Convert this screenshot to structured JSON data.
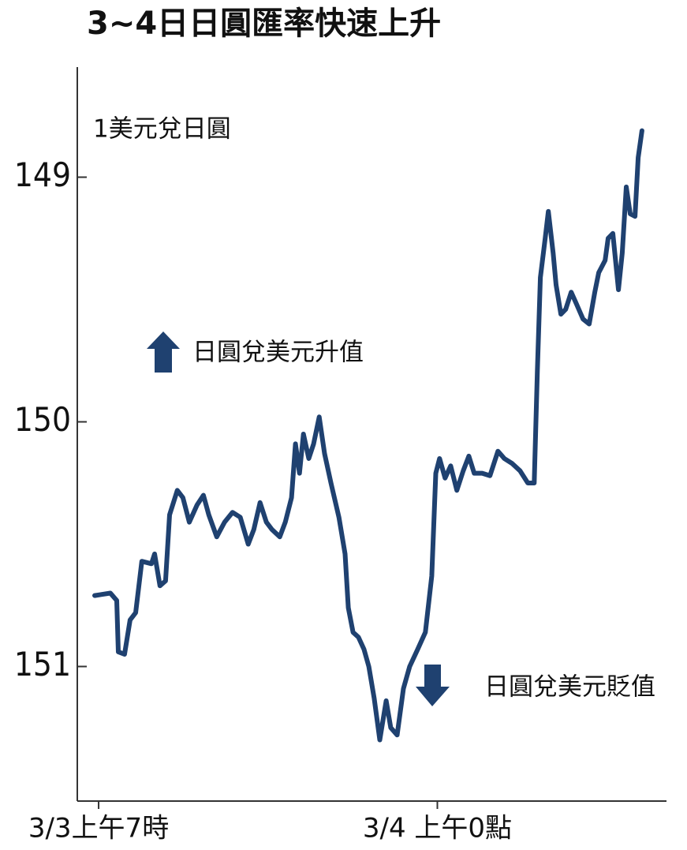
{
  "chart_data": {
    "type": "line",
    "title": "3~4日日圓匯率快速上升",
    "y_label": "1美元兌日圓",
    "annotations": [
      "日圓兌美元升值",
      "日圓兌美元貶值"
    ],
    "x": [
      -0.2,
      0.59,
      0.91,
      0.99,
      1.3,
      1.58,
      1.86,
      2.17,
      2.65,
      2.81,
      3.08,
      3.36,
      3.56,
      3.95,
      4.23,
      4.55,
      4.94,
      5.26,
      5.53,
      5.93,
      6.32,
      6.72,
      7.11,
      7.51,
      7.79,
      8.1,
      8.42,
      8.7,
      9.09,
      9.37,
      9.68,
      9.88,
      10.08,
      10.28,
      10.55,
      10.79,
      11.07,
      11.34,
      11.66,
      12.06,
      12.37,
      12.53,
      12.77,
      13.04,
      13.32,
      13.56,
      13.83,
      14.11,
      14.43,
      14.66,
      14.98,
      15.3,
      15.61,
      16.01,
      16.4,
      16.72,
      16.92,
      17.11,
      17.39,
      17.67,
      17.98,
      18.3,
      18.58,
      18.85,
      19.25,
      19.64,
      20.04,
      20.36,
      20.75,
      21.15,
      21.54,
      21.86,
      22.02,
      22.17,
      22.41,
      22.57,
      22.81,
      22.96,
      23.2,
      23.44,
      23.72,
      23.99,
      24.31,
      24.62,
      24.9,
      25.1,
      25.42,
      25.57,
      25.81,
      26.09,
      26.28,
      26.48,
      26.68,
      26.92,
      27.08,
      27.27
    ],
    "values": [
      150.71,
      150.7,
      150.73,
      150.94,
      150.95,
      150.81,
      150.78,
      150.57,
      150.58,
      150.54,
      150.67,
      150.65,
      150.38,
      150.28,
      150.31,
      150.41,
      150.34,
      150.3,
      150.38,
      150.47,
      150.41,
      150.37,
      150.39,
      150.5,
      150.44,
      150.33,
      150.41,
      150.44,
      150.47,
      150.41,
      150.31,
      150.09,
      150.21,
      150.05,
      150.15,
      150.09,
      149.98,
      150.13,
      150.25,
      150.39,
      150.54,
      150.76,
      150.86,
      150.88,
      150.93,
      151.0,
      151.13,
      151.3,
      151.14,
      151.25,
      151.28,
      151.09,
      151.0,
      150.93,
      150.86,
      150.63,
      150.21,
      150.15,
      150.23,
      150.18,
      150.28,
      150.2,
      150.14,
      150.21,
      150.21,
      150.22,
      150.12,
      150.15,
      150.17,
      150.2,
      150.25,
      150.25,
      149.79,
      149.41,
      149.25,
      149.14,
      149.31,
      149.44,
      149.56,
      149.54,
      149.47,
      149.52,
      149.58,
      149.6,
      149.47,
      149.39,
      149.34,
      149.25,
      149.23,
      149.46,
      149.31,
      149.04,
      149.15,
      149.16,
      148.92,
      148.81
    ],
    "color": "#1f4170",
    "xlim": [
      -1.07,
      28.5
    ],
    "xticks": [
      {
        "value": 0,
        "label": "3/3上午7時"
      },
      {
        "value": 17,
        "label": "3/4 上午0點"
      }
    ],
    "ylim": [
      148.55,
      151.55
    ],
    "yticks": [
      149,
      150,
      151
    ],
    "y_inverted": true,
    "grid": false
  }
}
